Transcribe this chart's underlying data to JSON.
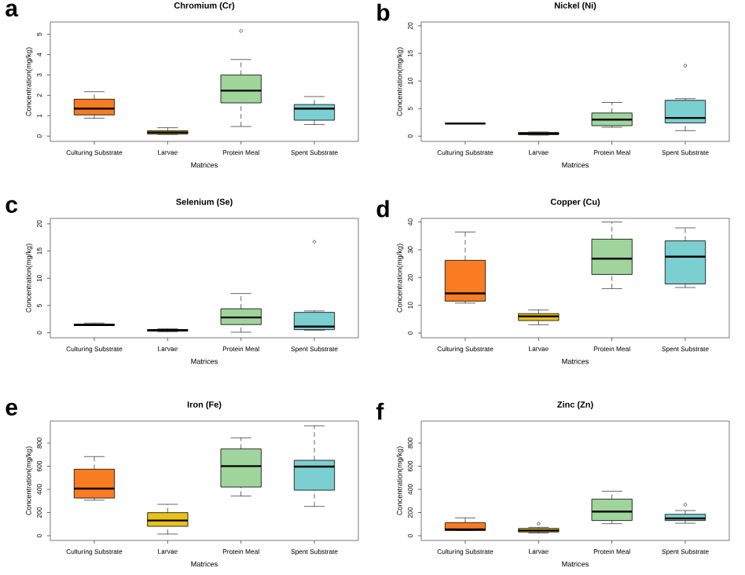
{
  "chart_data": [
    {
      "type": "box",
      "title": "Chromium (Cr)",
      "xlabel": "Matrices",
      "ylabel": "Concentration(mg/kg)",
      "annotations": [
        "a"
      ],
      "categories": [
        "Culturing Substrate",
        "Larvae",
        "Protein Meal",
        "Spent Substrate"
      ],
      "colors": [
        "#f97b22",
        "#e6c21a",
        "#9fd49b",
        "#7ccfd0"
      ],
      "ylim": [
        -0.26,
        5.6
      ],
      "yticks": [
        0,
        1,
        2,
        3,
        4,
        5
      ],
      "boxes": [
        {
          "low": 0.88,
          "q1": 1.04,
          "median": 1.35,
          "q3": 1.81,
          "high": 2.18
        },
        {
          "low": 0.08,
          "q1": 0.1,
          "median": 0.18,
          "q3": 0.26,
          "high": 0.41
        },
        {
          "low": 0.47,
          "q1": 1.63,
          "median": 2.23,
          "q3": 3.0,
          "high": 3.76,
          "outliers": [
            5.16
          ]
        },
        {
          "low": 0.57,
          "q1": 0.78,
          "median": 1.35,
          "q3": 1.55,
          "high": 1.94
        }
      ]
    },
    {
      "type": "box",
      "title": "Nickel (Ni)",
      "xlabel": "Matrices",
      "ylabel": "Concentration(mg/kg)",
      "annotations": [
        "b"
      ],
      "categories": [
        "Culturing Substrate",
        "Larvae",
        "Protein Meal",
        "Spent Substrate"
      ],
      "colors": [
        "#000000",
        "#e6c21a",
        "#9fd49b",
        "#7ccfd0"
      ],
      "ylim": [
        -0.95,
        20.7
      ],
      "yticks": [
        0,
        5,
        10,
        15,
        20
      ],
      "boxes": [
        {
          "low": 2.3,
          "q1": 2.3,
          "median": 2.3,
          "q3": 2.3,
          "high": 2.3
        },
        {
          "low": 0.19,
          "q1": 0.28,
          "median": 0.47,
          "q3": 0.66,
          "high": 0.76
        },
        {
          "low": 1.61,
          "q1": 1.9,
          "median": 3.0,
          "q3": 4.2,
          "high": 6.1
        },
        {
          "low": 1.0,
          "q1": 2.4,
          "median": 3.3,
          "q3": 6.5,
          "high": 6.8,
          "outliers": [
            12.8
          ]
        }
      ]
    },
    {
      "type": "box",
      "title": "Selenium (Se)",
      "xlabel": "Matrices",
      "ylabel": "Concentration(mg/kg)",
      "annotations": [
        "c"
      ],
      "categories": [
        "Culturing Substrate",
        "Larvae",
        "Protein Meal",
        "Spent Substrate"
      ],
      "colors": [
        "#f97b22",
        "#e6c21a",
        "#9fd49b",
        "#7ccfd0"
      ],
      "ylim": [
        -0.93,
        21
      ],
      "yticks": [
        0,
        5,
        10,
        15,
        20
      ],
      "boxes": [
        {
          "low": 1.31,
          "q1": 1.31,
          "median": 1.4,
          "q3": 1.59,
          "high": 1.78
        },
        {
          "low": 0.19,
          "q1": 0.28,
          "median": 0.47,
          "q3": 0.56,
          "high": 0.75
        },
        {
          "low": 0.09,
          "q1": 1.5,
          "median": 2.8,
          "q3": 4.4,
          "high": 7.2
        },
        {
          "low": 0.47,
          "q1": 0.56,
          "median": 1.12,
          "q3": 3.74,
          "high": 4.0,
          "outliers": [
            16.7
          ]
        }
      ]
    },
    {
      "type": "box",
      "title": "Copper (Cu)",
      "xlabel": "Matrices",
      "ylabel": "Concentration(mg/kg)",
      "annotations": [
        "d"
      ],
      "categories": [
        "Culturing Substrate",
        "Larvae",
        "Protein Meal",
        "Spent Substrate"
      ],
      "colors": [
        "#f97b22",
        "#e6c21a",
        "#9fd49b",
        "#7ccfd0"
      ],
      "ylim": [
        -1.7,
        41.3
      ],
      "yticks": [
        0,
        10,
        20,
        30,
        40
      ],
      "boxes": [
        {
          "low": 10.8,
          "q1": 11.5,
          "median": 14.3,
          "q3": 26.2,
          "high": 36.4
        },
        {
          "low": 3.0,
          "q1": 4.5,
          "median": 6.0,
          "q3": 7.0,
          "high": 8.3
        },
        {
          "low": 16.0,
          "q1": 21.1,
          "median": 26.8,
          "q3": 33.8,
          "high": 40
        },
        {
          "low": 16.4,
          "q1": 17.7,
          "median": 27.5,
          "q3": 33.2,
          "high": 37.9
        }
      ]
    },
    {
      "type": "box",
      "title": "Iron (Fe)",
      "xlabel": "Matrices",
      "ylabel": "Concentration(mg/kg)",
      "annotations": [
        "e"
      ],
      "categories": [
        "Culturing Substrate",
        "Larvae",
        "Protein Meal",
        "Spent Substrate"
      ],
      "colors": [
        "#f97b22",
        "#e6c21a",
        "#9fd49b",
        "#7ccfd0"
      ],
      "ylim": [
        -41,
        990
      ],
      "yticks": [
        0,
        200,
        400,
        600,
        800
      ],
      "boxes": [
        {
          "low": 307,
          "q1": 325,
          "median": 407,
          "q3": 574,
          "high": 683
        },
        {
          "low": 14,
          "q1": 81,
          "median": 131,
          "q3": 199,
          "high": 271
        },
        {
          "low": 343,
          "q1": 420,
          "median": 601,
          "q3": 750,
          "high": 845
        },
        {
          "low": 253,
          "q1": 393,
          "median": 597,
          "q3": 651,
          "high": 949
        }
      ]
    },
    {
      "type": "box",
      "title": "Zinc (Zn)",
      "xlabel": "Matrices",
      "ylabel": "Concentration(mg/kg)",
      "annotations": [
        "f"
      ],
      "categories": [
        "Culturing Substrate",
        "Larvae",
        "Protein Meal",
        "Spent Substrate"
      ],
      "colors": [
        "#f97b22",
        "#e6c21a",
        "#9fd49b",
        "#7ccfd0"
      ],
      "ylim": [
        -41,
        990
      ],
      "yticks": [
        0,
        200,
        400,
        600,
        800
      ],
      "boxes": [
        {
          "low": 45,
          "q1": 45,
          "median": 54,
          "q3": 113,
          "high": 154
        },
        {
          "low": 23,
          "q1": 32,
          "median": 45,
          "q3": 63,
          "high": 72,
          "outliers": [
            104
          ]
        },
        {
          "low": 104,
          "q1": 131,
          "median": 208,
          "q3": 316,
          "high": 384
        },
        {
          "low": 108,
          "q1": 131,
          "median": 149,
          "q3": 185,
          "high": 217,
          "outliers": [
            267
          ]
        }
      ]
    }
  ]
}
